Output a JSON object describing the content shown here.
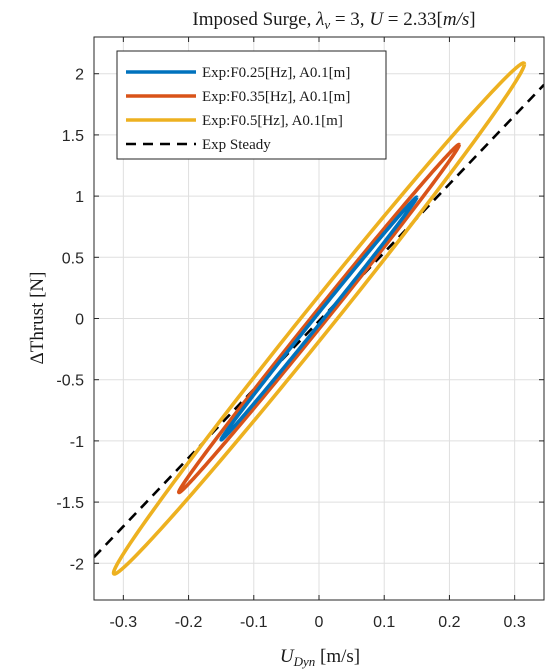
{
  "chart_data": {
    "type": "line",
    "title": "Imposed Surge, λ_v = 3, U = 2.33[m/s]",
    "title_parts": {
      "prefix": "Imposed Surge, ",
      "lambda": "λ",
      "lambda_sub": "v",
      "eq1": " = 3, ",
      "u": "U",
      "eq2": " = 2.33[",
      "unit": "m/s",
      "close": "]"
    },
    "xlabel": "U_Dyn [m/s]",
    "xlabel_parts": {
      "sym": "U",
      "sub": "Dyn",
      "unit": " [m/s]"
    },
    "ylabel": "ΔThrust [N]",
    "xlim": [
      -0.345,
      0.345
    ],
    "ylim": [
      -2.3,
      2.3
    ],
    "xticks": [
      -0.3,
      -0.2,
      -0.1,
      0,
      0.1,
      0.2,
      0.3
    ],
    "xtick_labels": [
      "-0.3",
      "-0.2",
      "-0.1",
      "0",
      "0.1",
      "0.2",
      "0.3"
    ],
    "yticks": [
      -2,
      -1.5,
      -1,
      -0.5,
      0,
      0.5,
      1,
      1.5,
      2
    ],
    "ytick_labels": [
      "-2",
      "-1.5",
      "-1",
      "-0.5",
      "0",
      "0.5",
      "1",
      "1.5",
      "2"
    ],
    "grid": true,
    "legend_position": "top-left",
    "series": [
      {
        "name": "Exp:F0.25[Hz], A0.1[m]",
        "kind": "loop",
        "color": "#0072BD",
        "center": [
          0,
          0
        ],
        "amplitude": 0.15,
        "slope": 6.6,
        "loop_width": 0.05
      },
      {
        "name": "Exp:F0.35[Hz], A0.1[m]",
        "kind": "loop",
        "color": "#D95319",
        "center": [
          0,
          0
        ],
        "amplitude": 0.215,
        "slope": 6.6,
        "loop_width": 0.06
      },
      {
        "name": "Exp:F0.5[Hz], A0.1[m]",
        "kind": "loop",
        "color": "#EDB120",
        "center": [
          0,
          0
        ],
        "amplitude": 0.315,
        "slope": 6.6,
        "loop_width": 0.09
      },
      {
        "name": "Exp Steady",
        "kind": "line",
        "color": "#000000",
        "dash": true,
        "x": [
          -0.345,
          0.345
        ],
        "y": [
          -1.95,
          1.91
        ]
      }
    ]
  }
}
